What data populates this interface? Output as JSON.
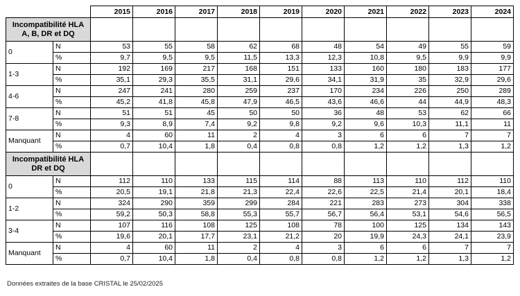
{
  "table": {
    "years": [
      "2015",
      "2016",
      "2017",
      "2018",
      "2019",
      "2020",
      "2021",
      "2022",
      "2023",
      "2024"
    ],
    "sections": [
      {
        "title": "Incompatibilité HLA A, B, DR et DQ",
        "groups": [
          {
            "label": "0",
            "rows": [
              {
                "unit": "N",
                "values": [
                  "53",
                  "55",
                  "58",
                  "62",
                  "68",
                  "48",
                  "54",
                  "49",
                  "55",
                  "59"
                ]
              },
              {
                "unit": "%",
                "values": [
                  "9,7",
                  "9,5",
                  "9,5",
                  "11,5",
                  "13,3",
                  "12,3",
                  "10,8",
                  "9,5",
                  "9,9",
                  "9,9"
                ]
              }
            ]
          },
          {
            "label": "1-3",
            "rows": [
              {
                "unit": "N",
                "values": [
                  "192",
                  "169",
                  "217",
                  "168",
                  "151",
                  "133",
                  "160",
                  "180",
                  "183",
                  "177"
                ]
              },
              {
                "unit": "%",
                "values": [
                  "35,1",
                  "29,3",
                  "35,5",
                  "31,1",
                  "29,6",
                  "34,1",
                  "31,9",
                  "35",
                  "32,9",
                  "29,6"
                ]
              }
            ]
          },
          {
            "label": "4-6",
            "rows": [
              {
                "unit": "N",
                "values": [
                  "247",
                  "241",
                  "280",
                  "259",
                  "237",
                  "170",
                  "234",
                  "226",
                  "250",
                  "289"
                ]
              },
              {
                "unit": "%",
                "values": [
                  "45,2",
                  "41,8",
                  "45,8",
                  "47,9",
                  "46,5",
                  "43,6",
                  "46,6",
                  "44",
                  "44,9",
                  "48,3"
                ]
              }
            ]
          },
          {
            "label": "7-8",
            "rows": [
              {
                "unit": "N",
                "values": [
                  "51",
                  "51",
                  "45",
                  "50",
                  "50",
                  "36",
                  "48",
                  "53",
                  "62",
                  "66"
                ]
              },
              {
                "unit": "%",
                "values": [
                  "9,3",
                  "8,9",
                  "7,4",
                  "9,2",
                  "9,8",
                  "9,2",
                  "9,6",
                  "10,3",
                  "11,1",
                  "11"
                ]
              }
            ]
          },
          {
            "label": "Manquant",
            "rows": [
              {
                "unit": "N",
                "values": [
                  "4",
                  "60",
                  "11",
                  "2",
                  "4",
                  "3",
                  "6",
                  "6",
                  "7",
                  "7"
                ]
              },
              {
                "unit": "%",
                "values": [
                  "0,7",
                  "10,4",
                  "1,8",
                  "0,4",
                  "0,8",
                  "0,8",
                  "1,2",
                  "1,2",
                  "1,3",
                  "1,2"
                ]
              }
            ]
          }
        ]
      },
      {
        "title": "Incompatibilité HLA DR et DQ",
        "groups": [
          {
            "label": "0",
            "rows": [
              {
                "unit": "N",
                "values": [
                  "112",
                  "110",
                  "133",
                  "115",
                  "114",
                  "88",
                  "113",
                  "110",
                  "112",
                  "110"
                ]
              },
              {
                "unit": "%",
                "values": [
                  "20,5",
                  "19,1",
                  "21,8",
                  "21,3",
                  "22,4",
                  "22,6",
                  "22,5",
                  "21,4",
                  "20,1",
                  "18,4"
                ]
              }
            ]
          },
          {
            "label": "1-2",
            "rows": [
              {
                "unit": "N",
                "values": [
                  "324",
                  "290",
                  "359",
                  "299",
                  "284",
                  "221",
                  "283",
                  "273",
                  "304",
                  "338"
                ]
              },
              {
                "unit": "%",
                "values": [
                  "59,2",
                  "50,3",
                  "58,8",
                  "55,3",
                  "55,7",
                  "56,7",
                  "56,4",
                  "53,1",
                  "54,6",
                  "56,5"
                ]
              }
            ]
          },
          {
            "label": "3-4",
            "rows": [
              {
                "unit": "N",
                "values": [
                  "107",
                  "116",
                  "108",
                  "125",
                  "108",
                  "78",
                  "100",
                  "125",
                  "134",
                  "143"
                ]
              },
              {
                "unit": "%",
                "values": [
                  "19,6",
                  "20,1",
                  "17,7",
                  "23,1",
                  "21,2",
                  "20",
                  "19,9",
                  "24,3",
                  "24,1",
                  "23,9"
                ]
              }
            ]
          },
          {
            "label": "Manquant",
            "rows": [
              {
                "unit": "N",
                "values": [
                  "4",
                  "60",
                  "11",
                  "2",
                  "4",
                  "3",
                  "6",
                  "6",
                  "7",
                  "7"
                ]
              },
              {
                "unit": "%",
                "values": [
                  "0,7",
                  "10,4",
                  "1,8",
                  "0,4",
                  "0,8",
                  "0,8",
                  "1,2",
                  "1,2",
                  "1,3",
                  "1,2"
                ]
              }
            ]
          }
        ]
      }
    ]
  },
  "footer": {
    "note": "Données extraites de la base CRISTAL le 25/02/2025"
  }
}
